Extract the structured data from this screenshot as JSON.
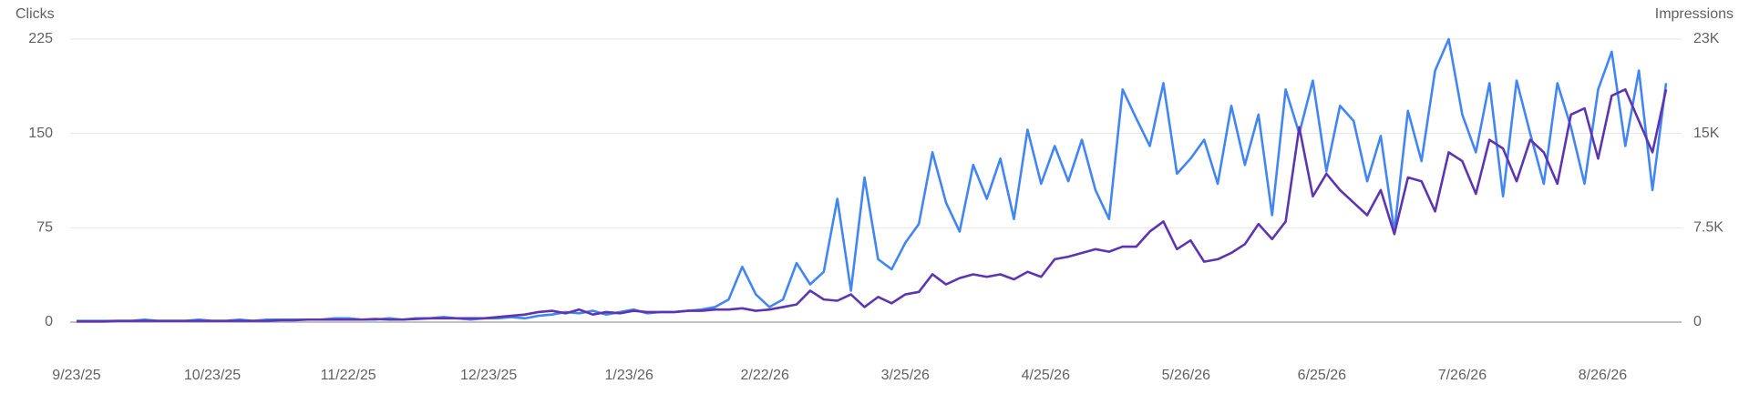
{
  "chart_data": {
    "type": "line",
    "x": [
      "9/23/25",
      "9/26/25",
      "9/29/25",
      "10/2/25",
      "10/5/25",
      "10/8/25",
      "10/11/25",
      "10/14/25",
      "10/17/25",
      "10/20/25",
      "10/23/25",
      "10/26/25",
      "10/29/25",
      "11/1/25",
      "11/4/25",
      "11/7/25",
      "11/10/25",
      "11/13/25",
      "11/16/25",
      "11/19/25",
      "11/22/25",
      "11/25/25",
      "11/28/25",
      "12/1/25",
      "12/4/25",
      "12/7/25",
      "12/10/25",
      "12/13/25",
      "12/16/25",
      "12/19/25",
      "12/22/25",
      "12/25/25",
      "12/28/25",
      "12/31/25",
      "1/3/26",
      "1/6/26",
      "1/9/26",
      "1/12/26",
      "1/15/26",
      "1/18/26",
      "1/21/26",
      "1/24/26",
      "1/27/26",
      "1/30/26",
      "2/2/26",
      "2/5/26",
      "2/8/26",
      "2/11/26",
      "2/14/26",
      "2/17/26",
      "2/20/26",
      "2/23/26",
      "2/26/26",
      "3/1/26",
      "3/4/26",
      "3/7/26",
      "3/10/26",
      "3/13/26",
      "3/16/26",
      "3/19/26",
      "3/22/26",
      "3/25/26",
      "3/28/26",
      "3/31/26",
      "4/3/26",
      "4/6/26",
      "4/9/26",
      "4/12/26",
      "4/15/26",
      "4/18/26",
      "4/21/26",
      "4/24/26",
      "4/27/26",
      "4/30/26",
      "5/3/26",
      "5/6/26",
      "5/9/26",
      "5/12/26",
      "5/15/26",
      "5/18/26",
      "5/21/26",
      "5/24/26",
      "5/27/26",
      "5/30/26",
      "6/2/26",
      "6/5/26",
      "6/8/26",
      "6/11/26",
      "6/14/26",
      "6/17/26",
      "6/20/26",
      "6/23/26",
      "6/26/26",
      "6/29/26",
      "7/2/26",
      "7/5/26",
      "7/8/26",
      "7/11/26",
      "7/14/26",
      "7/17/26",
      "7/20/26",
      "7/23/26",
      "7/26/26",
      "7/29/26",
      "8/1/26",
      "8/4/26",
      "8/7/26",
      "8/10/26",
      "8/13/26",
      "8/16/26",
      "8/19/26",
      "8/22/26",
      "8/25/26",
      "8/28/26",
      "8/31/26",
      "9/3/26",
      "9/6/26",
      "9/9/26"
    ],
    "xticks": [
      "9/23/25",
      "10/23/25",
      "11/22/25",
      "12/23/25",
      "1/23/26",
      "2/22/26",
      "3/25/26",
      "4/25/26",
      "5/26/26",
      "6/25/26",
      "7/26/26",
      "8/26/26"
    ],
    "series": [
      {
        "name": "Clicks",
        "color": "#4285f4",
        "values": [
          1,
          1,
          1,
          1,
          1,
          2,
          1,
          1,
          1,
          2,
          1,
          1,
          2,
          1,
          2,
          2,
          2,
          2,
          2,
          3,
          3,
          2,
          2,
          3,
          2,
          3,
          3,
          4,
          3,
          2,
          3,
          3,
          4,
          3,
          5,
          6,
          8,
          7,
          9,
          6,
          8,
          10,
          7,
          8,
          8,
          9,
          10,
          12,
          18,
          44,
          22,
          12,
          18,
          47,
          30,
          40,
          98,
          25,
          115,
          50,
          42,
          63,
          78,
          135,
          95,
          72,
          125,
          98,
          130,
          82,
          153,
          110,
          140,
          112,
          145,
          105,
          82,
          185,
          162,
          140,
          190,
          118,
          130,
          145,
          110,
          172,
          125,
          165,
          85,
          185,
          150,
          192,
          120,
          172,
          160,
          112,
          148,
          72,
          168,
          128,
          200,
          225,
          165,
          135,
          190,
          100,
          192,
          150,
          110,
          190,
          155,
          110,
          185,
          215,
          140,
          200,
          105,
          190
        ]
      },
      {
        "name": "Impressions",
        "color": "#5e35b1",
        "axis": "y2",
        "values": [
          50,
          50,
          50,
          100,
          100,
          100,
          100,
          100,
          100,
          100,
          100,
          100,
          100,
          100,
          100,
          150,
          150,
          200,
          200,
          200,
          200,
          200,
          250,
          200,
          200,
          250,
          300,
          300,
          300,
          300,
          300,
          400,
          500,
          600,
          800,
          900,
          700,
          1000,
          600,
          800,
          700,
          900,
          800,
          800,
          800,
          900,
          900,
          1000,
          1000,
          1100,
          900,
          1000,
          1200,
          1400,
          2500,
          1800,
          1700,
          2200,
          1200,
          2000,
          1500,
          2200,
          2400,
          3800,
          3000,
          3500,
          3800,
          3600,
          3800,
          3400,
          4000,
          3600,
          5000,
          5200,
          5500,
          5800,
          5600,
          6000,
          6000,
          7200,
          8000,
          5800,
          6500,
          4800,
          5000,
          5500,
          6200,
          7800,
          6600,
          8000,
          15500,
          10000,
          11800,
          10500,
          9500,
          8500,
          10500,
          7000,
          11500,
          11200,
          8800,
          13500,
          12800,
          10200,
          14500,
          13800,
          11200,
          14500,
          13500,
          11000,
          16500,
          17000,
          13000,
          18000,
          18500,
          16000,
          13500,
          18500
        ]
      }
    ],
    "ylim": [
      0,
      225
    ],
    "yticks": [
      0,
      75,
      150,
      225
    ],
    "y2lim": [
      0,
      22500
    ],
    "y2ticks": [
      0,
      {
        "value": 7500,
        "label": "7.5K"
      },
      {
        "value": 15000,
        "label": "15K"
      },
      {
        "value": 22500,
        "label": "23K"
      }
    ],
    "grid": true
  }
}
